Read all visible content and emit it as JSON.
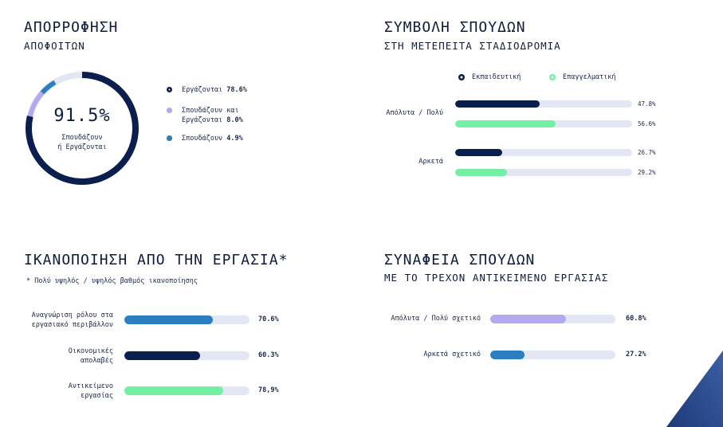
{
  "colors": {
    "navy": "#0b1f4f",
    "lavender": "#b4a9ef",
    "blue": "#2b7fc1",
    "mint": "#74f0a4",
    "track": "#e3e7f3"
  },
  "absorption": {
    "title": "ΑΠΟΡΡΟΦΗΣΗ",
    "subtitle": "ΑΠΟΦΟΙΤΩΝ",
    "center_value": "91.5%",
    "center_label_1": "Σπουδάζουν",
    "center_label_2": "ή Εργάζονται"
  },
  "studies": {
    "title": "ΣΥΜΒΟΛΗ ΣΠΟΥΔΩΝ",
    "subtitle": "ΣΤΗ ΜΕΤΕΠΕΙΤΑ ΣΤΑΔΙΟΔΡΟΜΙΑ"
  },
  "satisfaction": {
    "title": "ΙΚΑΝΟΠΟΙΗΣΗ ΑΠΟ ΤΗΝ ΕΡΓΑΣΙΑ*",
    "note": "* Πολύ υψηλός / υψηλός βαθμός ικανοποίησης"
  },
  "relevance": {
    "title": "ΣΥΝΑΦΕΙΑ ΣΠΟΥΔΩΝ",
    "subtitle": "ΜΕ ΤΟ ΤΡΕΧΟΝ ΑΝΤΙΚΕΙΜΕΝΟ ΕΡΓΑΣΙΑΣ"
  },
  "chart_data": [
    {
      "type": "pie",
      "title": "ΑΠΟΡΡΟΦΗΣΗ ΑΠΟΦΟΙΤΩΝ",
      "variant": "donut",
      "slices": [
        {
          "label_prefix": "Εργάζονται",
          "label_line1": "Εργάζονται",
          "label_line2": "",
          "value": 78.6,
          "value_text": "78.6%",
          "color": "#0b1f4f"
        },
        {
          "label_prefix": "Σπουδάζουν και Εργάζονται",
          "label_line1": "Σπουδάζουν και",
          "label_line2": "Εργάζονται",
          "value": 8.0,
          "value_text": "8.0%",
          "color": "#b4a9ef"
        },
        {
          "label_prefix": "Σπουδάζουν",
          "label_line1": "Σπουδάζουν",
          "label_line2": "",
          "value": 4.9,
          "value_text": "4.9%",
          "color": "#2b7fc1"
        }
      ],
      "total_label": "91.5%"
    },
    {
      "type": "bar",
      "orientation": "horizontal",
      "title": "ΣΥΜΒΟΛΗ ΣΠΟΥΔΩΝ ΣΤΗ ΜΕΤΕΠΕΙΤΑ ΣΤΑΔΙΟΔΡΟΜΙΑ",
      "categories": [
        "Απόλυτα / Πολύ",
        "Αρκετά"
      ],
      "series": [
        {
          "name": "Εκπαιδευτική",
          "color": "#0b1f4f",
          "values": [
            47.8,
            26.7
          ],
          "labels": [
            "47.8%",
            "26.7%"
          ]
        },
        {
          "name": "Επαγγελματική",
          "color": "#74f0a4",
          "values": [
            56.6,
            29.2
          ],
          "labels": [
            "56.6%",
            "29.2%"
          ]
        }
      ],
      "legend": "top",
      "xlim": [
        0,
        100
      ]
    },
    {
      "type": "bar",
      "orientation": "horizontal",
      "title": "ΙΚΑΝΟΠΟΙΗΣΗ ΑΠΟ ΤΗΝ ΕΡΓΑΣΙΑ*",
      "bars": [
        {
          "label_line1": "Αναγνώριση ρόλου στα",
          "label_line2": "εργασιακό περιβάλλον",
          "value": 70.6,
          "value_text": "70.6%",
          "color": "#2b7fc1"
        },
        {
          "label_line1": "Οικονομικές",
          "label_line2": "απολαβές",
          "value": 60.3,
          "value_text": "60.3%",
          "color": "#0b1f4f"
        },
        {
          "label_line1": "Αντικείμενο",
          "label_line2": "εργασίας",
          "value": 78.9,
          "value_text": "78,9%",
          "color": "#74f0a4"
        }
      ],
      "xlim": [
        0,
        100
      ]
    },
    {
      "type": "bar",
      "orientation": "horizontal",
      "title": "ΣΥΝΑΦΕΙΑ ΣΠΟΥΔΩΝ ΜΕ ΤΟ ΤΡΕΧΟΝ ΑΝΤΙΚΕΙΜΕΝΟ ΕΡΓΑΣΙΑΣ",
      "bars": [
        {
          "label_line1": "Απόλυτα / Πολύ σχετικό",
          "value": 60.8,
          "value_text": "60.8%",
          "color": "#b4a9ef"
        },
        {
          "label_line1": "Αρκετά σχετικό",
          "value": 27.2,
          "value_text": "27.2%",
          "color": "#2b7fc1"
        }
      ],
      "xlim": [
        0,
        100
      ]
    }
  ]
}
